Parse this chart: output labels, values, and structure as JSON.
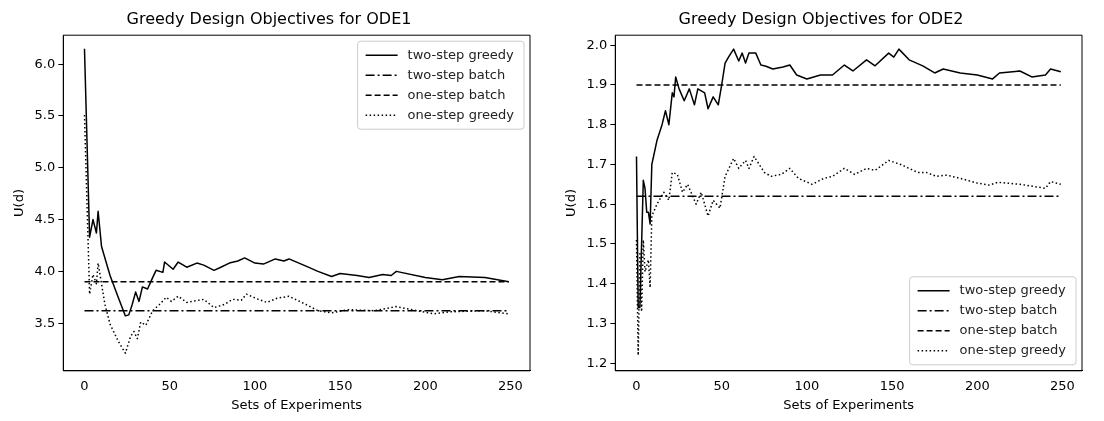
{
  "chart_data": [
    {
      "type": "line",
      "title": "Greedy Design Objectives for ODE1",
      "xlabel": "Sets of Experiments",
      "ylabel": "U(d)",
      "xlim": [
        -12.45,
        261.45
      ],
      "ylim": [
        3.04,
        6.28
      ],
      "xticks": [
        0,
        50,
        100,
        150,
        200,
        250
      ],
      "yticks": [
        3.5,
        {
          "value": 4,
          "label": "4.0"
        },
        4.5,
        {
          "value": 5,
          "label": "5.0"
        },
        5.5,
        {
          "value": 6,
          "label": "6.0"
        }
      ],
      "legend": "top right",
      "marker": "none",
      "series": [
        {
          "name": "two-step greedy",
          "color": "#000000",
          "line_style": "solid",
          "x": [
            0,
            3,
            5,
            7,
            8,
            10,
            15,
            20,
            24,
            26,
            28,
            30,
            32,
            34,
            37,
            40,
            42,
            46,
            47,
            52,
            55,
            60,
            66,
            70,
            76,
            80,
            85,
            90,
            94,
            100,
            105,
            112,
            117,
            120,
            130,
            137,
            145,
            150,
            160,
            167,
            175,
            180,
            183,
            200,
            210,
            220,
            235,
            249
          ],
          "values": [
            6.15,
            4.33,
            4.5,
            4.37,
            4.58,
            4.24,
            3.96,
            3.74,
            3.57,
            3.58,
            3.68,
            3.8,
            3.71,
            3.85,
            3.83,
            3.94,
            4.01,
            3.99,
            4.09,
            4.02,
            4.09,
            4.04,
            4.08,
            4.06,
            4.01,
            4.04,
            4.08,
            4.1,
            4.13,
            4.08,
            4.07,
            4.12,
            4.1,
            4.12,
            4.05,
            4.0,
            3.95,
            3.98,
            3.96,
            3.94,
            3.97,
            3.96,
            4.0,
            3.94,
            3.92,
            3.95,
            3.94,
            3.9
          ]
        },
        {
          "name": "two-step batch",
          "color": "#000000",
          "line_style": "dashdot",
          "x": [
            0,
            249
          ],
          "values": [
            3.62,
            3.62
          ]
        },
        {
          "name": "one-step batch",
          "color": "#000000",
          "line_style": "dashed",
          "x": [
            0,
            249
          ],
          "values": [
            3.9,
            3.9
          ]
        },
        {
          "name": "one-step greedy",
          "color": "#000000",
          "line_style": "dotted",
          "x": [
            0,
            3,
            5,
            7,
            8,
            10,
            12,
            15,
            20,
            24,
            27,
            29,
            31,
            33,
            36,
            40,
            44,
            48,
            51,
            55,
            60,
            70,
            76,
            82,
            87,
            92,
            95,
            102,
            107,
            113,
            120,
            130,
            137,
            145,
            155,
            170,
            183,
            195,
            205,
            215,
            235,
            249
          ],
          "values": [
            5.51,
            3.78,
            3.97,
            3.88,
            4.08,
            3.88,
            3.68,
            3.49,
            3.32,
            3.21,
            3.37,
            3.42,
            3.35,
            3.51,
            3.48,
            3.62,
            3.68,
            3.75,
            3.71,
            3.76,
            3.7,
            3.73,
            3.65,
            3.68,
            3.73,
            3.72,
            3.78,
            3.73,
            3.7,
            3.74,
            3.76,
            3.68,
            3.62,
            3.6,
            3.63,
            3.62,
            3.66,
            3.62,
            3.59,
            3.61,
            3.62,
            3.59
          ]
        }
      ]
    },
    {
      "type": "line",
      "title": "Greedy Design Objectives for ODE2",
      "xlabel": "Sets of Experiments",
      "ylabel": "U(d)",
      "xlim": [
        -12.45,
        261.45
      ],
      "ylim": [
        1.181,
        2.025
      ],
      "xticks": [
        0,
        50,
        100,
        150,
        200,
        250
      ],
      "yticks": [
        1.2,
        1.3,
        1.4,
        1.5,
        1.6,
        1.7,
        1.8,
        1.9,
        {
          "value": 2,
          "label": "2.0"
        }
      ],
      "legend": "bottom right",
      "marker": "none",
      "series": [
        {
          "name": "two-step greedy",
          "color": "#000000",
          "line_style": "solid",
          "x": [
            0,
            1,
            2,
            4,
            5,
            6,
            7,
            8,
            9,
            10,
            12,
            15,
            17,
            19,
            21,
            22,
            23,
            25,
            28,
            31,
            34,
            36,
            40,
            42,
            45,
            48,
            50,
            52,
            54,
            57,
            60,
            62,
            64,
            66,
            70,
            73,
            76,
            80,
            86,
            90,
            94,
            100,
            108,
            115,
            122,
            127,
            135,
            140,
            148,
            151,
            154,
            160,
            168,
            175,
            180,
            190,
            200,
            209,
            213,
            225,
            232,
            240,
            243,
            249
          ],
          "values": [
            1.72,
            1.34,
            1.34,
            1.66,
            1.64,
            1.58,
            1.58,
            1.55,
            1.7,
            1.72,
            1.76,
            1.8,
            1.835,
            1.8,
            1.88,
            1.87,
            1.92,
            1.89,
            1.86,
            1.89,
            1.85,
            1.89,
            1.88,
            1.84,
            1.87,
            1.85,
            1.9,
            1.955,
            1.97,
            1.99,
            1.96,
            1.98,
            1.955,
            1.98,
            1.98,
            1.95,
            1.947,
            1.94,
            1.945,
            1.95,
            1.925,
            1.915,
            1.925,
            1.925,
            1.95,
            1.935,
            1.963,
            1.948,
            1.98,
            1.97,
            1.99,
            1.963,
            1.948,
            1.93,
            1.94,
            1.93,
            1.925,
            1.915,
            1.93,
            1.935,
            1.92,
            1.925,
            1.94,
            1.933
          ]
        },
        {
          "name": "two-step batch",
          "color": "#000000",
          "line_style": "dashdot",
          "x": [
            0,
            249
          ],
          "values": [
            1.62,
            1.62
          ]
        },
        {
          "name": "one-step batch",
          "color": "#000000",
          "line_style": "dashed",
          "x": [
            0,
            249
          ],
          "values": [
            1.9,
            1.9
          ]
        },
        {
          "name": "one-step greedy",
          "color": "#000000",
          "line_style": "dotted",
          "x": [
            0,
            1,
            2,
            3,
            4,
            5,
            7,
            8,
            9,
            12,
            16,
            19,
            21,
            24,
            27,
            30,
            35,
            38,
            42,
            45,
            49,
            52,
            57,
            60,
            64,
            66,
            69,
            75,
            79,
            85,
            90,
            95,
            103,
            110,
            115,
            122,
            128,
            135,
            140,
            148,
            155,
            165,
            170,
            176,
            182,
            190,
            200,
            207,
            212,
            225,
            240,
            243,
            249
          ],
          "values": [
            1.51,
            1.22,
            1.48,
            1.33,
            1.51,
            1.43,
            1.46,
            1.39,
            1.57,
            1.6,
            1.63,
            1.61,
            1.68,
            1.675,
            1.63,
            1.65,
            1.6,
            1.63,
            1.57,
            1.61,
            1.59,
            1.67,
            1.715,
            1.69,
            1.71,
            1.69,
            1.72,
            1.68,
            1.67,
            1.675,
            1.69,
            1.665,
            1.65,
            1.665,
            1.67,
            1.69,
            1.675,
            1.69,
            1.685,
            1.71,
            1.7,
            1.68,
            1.68,
            1.67,
            1.673,
            1.665,
            1.653,
            1.648,
            1.655,
            1.65,
            1.64,
            1.657,
            1.65
          ]
        }
      ]
    }
  ]
}
